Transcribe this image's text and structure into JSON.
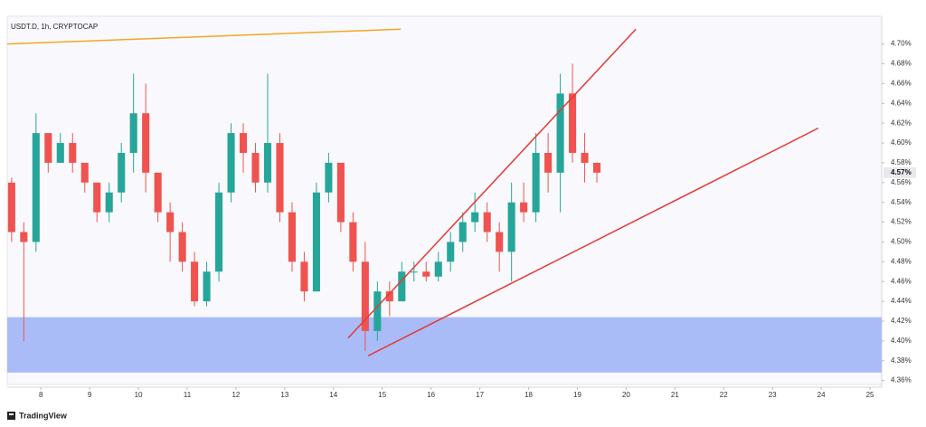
{
  "chart_data": {
    "type": "candlestick",
    "title": "USDT.D, 1h, CRYPTOCAP",
    "footer": "TradingView",
    "xlim": [
      7.31,
      25.24
    ],
    "xticks": [
      8,
      9,
      10,
      11,
      12,
      13,
      14,
      15,
      16,
      17,
      18,
      19,
      20,
      21,
      22,
      23,
      24,
      25
    ],
    "ylim": [
      4.356,
      4.728
    ],
    "yticks": [
      {
        "value": 4.36,
        "label": "4.36%"
      },
      {
        "value": 4.38,
        "label": "4.38%"
      },
      {
        "value": 4.4,
        "label": "4.40%"
      },
      {
        "value": 4.42,
        "label": "4.42%"
      },
      {
        "value": 4.44,
        "label": "4.44%"
      },
      {
        "value": 4.46,
        "label": "4.46%"
      },
      {
        "value": 4.48,
        "label": "4.48%"
      },
      {
        "value": 4.5,
        "label": "4.50%"
      },
      {
        "value": 4.52,
        "label": "4.52%"
      },
      {
        "value": 4.54,
        "label": "4.54%"
      },
      {
        "value": 4.56,
        "label": "4.56%"
      },
      {
        "value": 4.58,
        "label": "4.58%"
      },
      {
        "value": 4.6,
        "label": "4.60%"
      },
      {
        "value": 4.62,
        "label": "4.62%"
      },
      {
        "value": 4.64,
        "label": "4.64%"
      },
      {
        "value": 4.66,
        "label": "4.66%"
      },
      {
        "value": 4.68,
        "label": "4.68%"
      },
      {
        "value": 4.7,
        "label": "4.70%"
      }
    ],
    "last_price": {
      "value": 4.57,
      "label": "4.57%"
    },
    "up_color": "#26a69a",
    "down_color": "#ef5350",
    "x": [
      7.4,
      7.65,
      7.9,
      8.15,
      8.4,
      8.65,
      8.9,
      9.15,
      9.4,
      9.65,
      9.9,
      10.15,
      10.4,
      10.65,
      10.9,
      11.15,
      11.4,
      11.65,
      11.9,
      12.15,
      12.4,
      12.65,
      12.9,
      13.15,
      13.4,
      13.65,
      13.9,
      14.15,
      14.4,
      14.65,
      14.9,
      15.15,
      15.4,
      15.65,
      15.9,
      16.15,
      16.4,
      16.65,
      16.9,
      17.15,
      17.4,
      17.65,
      17.9,
      18.15,
      18.4,
      18.65,
      18.9,
      19.15,
      19.4
    ],
    "open": [
      4.56,
      4.51,
      4.5,
      4.61,
      4.58,
      4.6,
      4.58,
      4.56,
      4.53,
      4.55,
      4.59,
      4.63,
      4.57,
      4.53,
      4.51,
      4.48,
      4.44,
      4.47,
      4.55,
      4.61,
      4.59,
      4.56,
      4.6,
      4.53,
      4.48,
      4.45,
      4.55,
      4.58,
      4.52,
      4.48,
      4.41,
      4.45,
      4.44,
      4.47,
      4.47,
      4.465,
      4.48,
      4.5,
      4.52,
      4.53,
      4.51,
      4.49,
      4.54,
      4.53,
      4.59,
      4.57,
      4.65,
      4.59,
      4.58
    ],
    "high": [
      4.565,
      4.52,
      4.63,
      4.61,
      4.61,
      4.61,
      4.58,
      4.56,
      4.56,
      4.6,
      4.67,
      4.66,
      4.57,
      4.54,
      4.52,
      4.49,
      4.48,
      4.56,
      4.62,
      4.62,
      4.6,
      4.67,
      4.61,
      4.54,
      4.49,
      4.56,
      4.59,
      4.58,
      4.53,
      4.5,
      4.46,
      4.46,
      4.48,
      4.48,
      4.48,
      4.49,
      4.51,
      4.53,
      4.55,
      4.54,
      4.52,
      4.56,
      4.56,
      4.61,
      4.61,
      4.67,
      4.68,
      4.61,
      4.58
    ],
    "low": [
      4.5,
      4.4,
      4.49,
      4.57,
      4.58,
      4.57,
      4.55,
      4.52,
      4.52,
      4.54,
      4.57,
      4.55,
      4.52,
      4.48,
      4.47,
      4.435,
      4.435,
      4.46,
      4.54,
      4.57,
      4.55,
      4.55,
      4.52,
      4.47,
      4.44,
      4.45,
      4.54,
      4.51,
      4.47,
      4.39,
      4.4,
      4.425,
      4.44,
      4.46,
      4.46,
      4.46,
      4.47,
      4.49,
      4.51,
      4.5,
      4.47,
      4.46,
      4.52,
      4.52,
      4.55,
      4.53,
      4.58,
      4.56,
      4.56
    ],
    "close": [
      4.51,
      4.5,
      4.61,
      4.58,
      4.6,
      4.58,
      4.56,
      4.53,
      4.55,
      4.59,
      4.63,
      4.57,
      4.53,
      4.51,
      4.48,
      4.44,
      4.47,
      4.55,
      4.61,
      4.59,
      4.56,
      4.6,
      4.53,
      4.48,
      4.45,
      4.55,
      4.58,
      4.52,
      4.48,
      4.41,
      4.45,
      4.44,
      4.47,
      4.47,
      4.465,
      4.48,
      4.5,
      4.52,
      4.53,
      4.51,
      4.49,
      4.54,
      4.53,
      4.59,
      4.57,
      4.65,
      4.59,
      4.58,
      4.57
    ],
    "zone": {
      "from": 4.368,
      "to": 4.424,
      "color": "#a9bcf7"
    },
    "lines": [
      {
        "color": "#f5a623",
        "x": [
          7.31,
          15.38
        ],
        "y": [
          4.7,
          4.715
        ]
      },
      {
        "color": "#e53935",
        "x": [
          14.3,
          20.2
        ],
        "y": [
          4.403,
          4.715
        ]
      },
      {
        "color": "#e53935",
        "x": [
          14.71,
          23.94
        ],
        "y": [
          4.385,
          4.615
        ]
      }
    ]
  }
}
